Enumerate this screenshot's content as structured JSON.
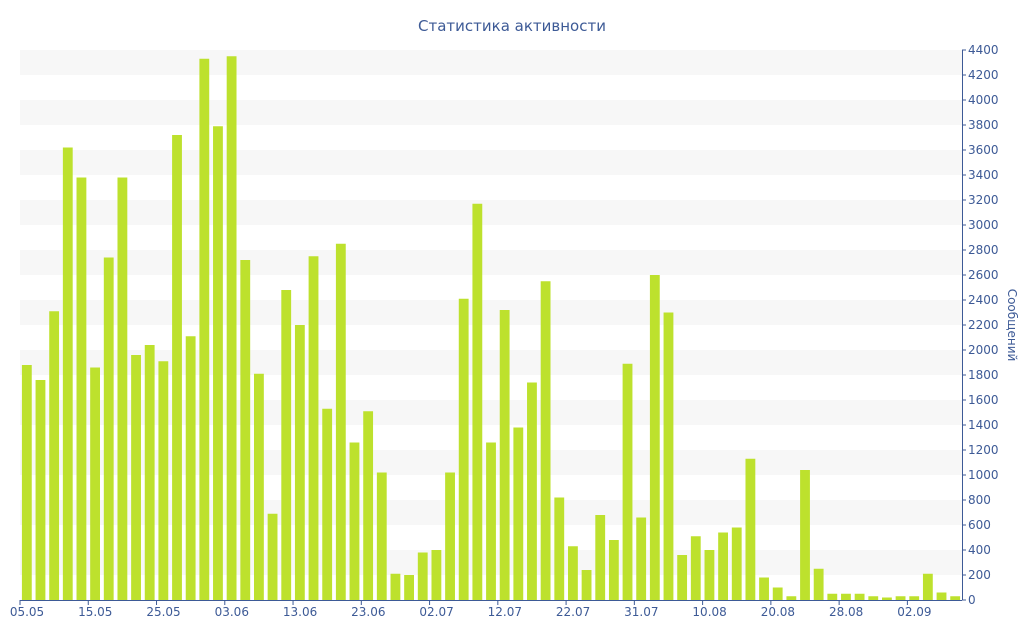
{
  "chart_data": {
    "type": "bar",
    "title": "Статистика активности",
    "ylabel": "Сообщений",
    "xlabel": "",
    "ylim": [
      0,
      4400
    ],
    "y_ticks": [
      0,
      200,
      400,
      600,
      800,
      1000,
      1200,
      1400,
      1600,
      1800,
      2000,
      2200,
      2400,
      2600,
      2800,
      3000,
      3200,
      3400,
      3600,
      3800,
      4000,
      4200,
      4400
    ],
    "y_axis_side": "right",
    "grid": "horizontal alternating bands",
    "x_tick_labels": [
      {
        "index": 0,
        "label": "05.05"
      },
      {
        "index": 5,
        "label": "15.05"
      },
      {
        "index": 10,
        "label": "25.05"
      },
      {
        "index": 15,
        "label": "03.06"
      },
      {
        "index": 20,
        "label": "13.06"
      },
      {
        "index": 25,
        "label": "23.06"
      },
      {
        "index": 30,
        "label": "02.07"
      },
      {
        "index": 35,
        "label": "12.07"
      },
      {
        "index": 40,
        "label": "22.07"
      },
      {
        "index": 45,
        "label": "31.07"
      },
      {
        "index": 50,
        "label": "10.08"
      },
      {
        "index": 55,
        "label": "20.08"
      },
      {
        "index": 60,
        "label": "28.08"
      },
      {
        "index": 65,
        "label": "02.09"
      }
    ],
    "values": [
      1880,
      1760,
      2310,
      3620,
      3380,
      1860,
      2740,
      3380,
      1960,
      2040,
      1910,
      3720,
      2110,
      4330,
      3790,
      4350,
      2720,
      1810,
      690,
      2480,
      2200,
      2750,
      1530,
      2850,
      1260,
      1510,
      1020,
      210,
      200,
      380,
      400,
      1020,
      2410,
      3170,
      1260,
      2320,
      1380,
      1740,
      2550,
      820,
      430,
      240,
      680,
      480,
      1890,
      660,
      2600,
      2300,
      360,
      510,
      400,
      540,
      580,
      1130,
      180,
      100,
      30,
      1040,
      250,
      50,
      50,
      50,
      30,
      20,
      30,
      30,
      210,
      60,
      30
    ],
    "colors": {
      "bar": "#bde12d",
      "band": "#f7f7f7",
      "axis_text": "#3d5a96",
      "title_text": "#3d5a96",
      "axis_line": "#3d5a96"
    }
  }
}
